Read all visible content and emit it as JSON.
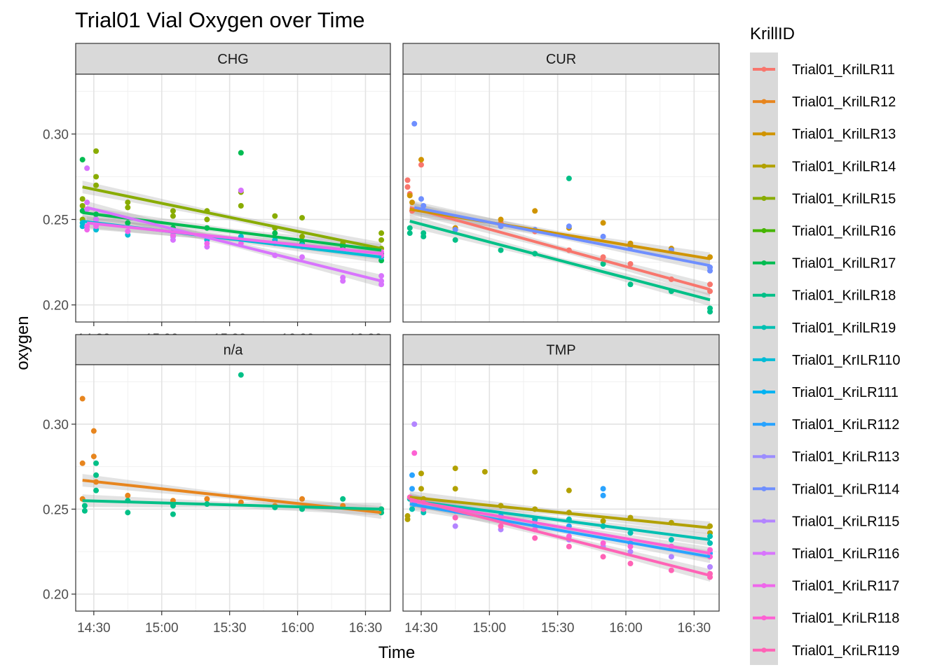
{
  "chart_data": {
    "type": "scatter",
    "title": "Trial01 Vial Oxygen over Time",
    "xlabel": "Time",
    "ylabel": "oxygen",
    "xlim_minutes": [
      862,
      1001
    ],
    "ylim": [
      0.19,
      0.335
    ],
    "x_ticks": [
      {
        "value": 870,
        "label": "14:30"
      },
      {
        "value": 900,
        "label": "15:00"
      },
      {
        "value": 930,
        "label": "15:30"
      },
      {
        "value": 960,
        "label": "16:00"
      },
      {
        "value": 990,
        "label": "16:30"
      }
    ],
    "y_ticks": [
      {
        "value": 0.2,
        "label": "0.20"
      },
      {
        "value": 0.25,
        "label": "0.25"
      },
      {
        "value": 0.3,
        "label": "0.30"
      }
    ],
    "legend": {
      "title": "KrillID",
      "position": "right"
    },
    "series": [
      {
        "name": "Trial01_KrilLR11",
        "color": "#F8766D"
      },
      {
        "name": "Trial01_KrilLR12",
        "color": "#E7851E"
      },
      {
        "name": "Trial01_KrilLR13",
        "color": "#D09400"
      },
      {
        "name": "Trial01_KrilLR14",
        "color": "#B2A100"
      },
      {
        "name": "Trial01_KrilLR15",
        "color": "#89AC00"
      },
      {
        "name": "Trial01_KrilLR16",
        "color": "#45B500"
      },
      {
        "name": "Trial01_KrilLR17",
        "color": "#00BC51"
      },
      {
        "name": "Trial01_KrilLR18",
        "color": "#00C087"
      },
      {
        "name": "Trial01_KrilLR19",
        "color": "#00C0B2"
      },
      {
        "name": "Trial01_KrILR110",
        "color": "#00BCD6"
      },
      {
        "name": "Trial01_KriLR111",
        "color": "#00B3F2"
      },
      {
        "name": "Trial01_KriLR112",
        "color": "#29A3FF"
      },
      {
        "name": "Trial01_KriLR113",
        "color": "#9C8DFF"
      },
      {
        "name": "Trial01_KriLR114",
        "color": "#6F8FFF"
      },
      {
        "name": "Trial01_KriLR115",
        "color": "#B385FF"
      },
      {
        "name": "Trial01_KriLR116",
        "color": "#D874FD"
      },
      {
        "name": "Trial01_KriLR117",
        "color": "#EF67EB"
      },
      {
        "name": "Trial01_KriLR118",
        "color": "#FD61D3"
      },
      {
        "name": "Trial01_KriLR119",
        "color": "#FF63B6"
      }
    ],
    "panels": [
      {
        "name": "CHG",
        "fits": [
          {
            "series": 4,
            "x": [
              865,
              997
            ],
            "y": [
              0.269,
              0.233
            ]
          },
          {
            "series": 6,
            "x": [
              865,
              997
            ],
            "y": [
              0.254,
              0.232
            ]
          },
          {
            "series": 9,
            "x": [
              865,
              997
            ],
            "y": [
              0.249,
              0.228
            ]
          },
          {
            "series": 15,
            "x": [
              867,
              997
            ],
            "y": [
              0.257,
              0.214
            ]
          },
          {
            "series": 16,
            "x": [
              867,
              997
            ],
            "y": [
              0.248,
              0.23
            ]
          }
        ],
        "points": [
          {
            "series": 4,
            "x": [
              865,
              865,
              865,
              871,
              871,
              871,
              885,
              885,
              905,
              905,
              920,
              920,
              935,
              935,
              950,
              950,
              962,
              962,
              980,
              997,
              997,
              997
            ],
            "y": [
              0.262,
              0.258,
              0.25,
              0.29,
              0.275,
              0.27,
              0.26,
              0.257,
              0.255,
              0.252,
              0.255,
              0.25,
              0.266,
              0.258,
              0.252,
              0.245,
              0.251,
              0.24,
              0.236,
              0.242,
              0.238,
              0.233
            ]
          },
          {
            "series": 6,
            "x": [
              865,
              865,
              871,
              871,
              885,
              905,
              920,
              935,
              950,
              962,
              980,
              997,
              997
            ],
            "y": [
              0.285,
              0.255,
              0.253,
              0.25,
              0.248,
              0.245,
              0.245,
              0.289,
              0.242,
              0.236,
              0.234,
              0.23,
              0.226
            ]
          },
          {
            "series": 9,
            "x": [
              865,
              865,
              871,
              871,
              885,
              905,
              920,
              935,
              950,
              962,
              980,
              997
            ],
            "y": [
              0.248,
              0.246,
              0.247,
              0.244,
              0.241,
              0.24,
              0.238,
              0.24,
              0.238,
              0.235,
              0.232,
              0.228
            ]
          },
          {
            "series": 15,
            "x": [
              867,
              867,
              867,
              871,
              871,
              885,
              905,
              905,
              920,
              935,
              950,
              962,
              980,
              980,
              997,
              997,
              997
            ],
            "y": [
              0.28,
              0.26,
              0.256,
              0.25,
              0.248,
              0.243,
              0.24,
              0.238,
              0.234,
              0.267,
              0.229,
              0.228,
              0.216,
              0.214,
              0.217,
              0.214,
              0.212
            ]
          },
          {
            "series": 16,
            "x": [
              867,
              867,
              871,
              885,
              905,
              920,
              935,
              950,
              962,
              980,
              997,
              997
            ],
            "y": [
              0.246,
              0.244,
              0.246,
              0.243,
              0.241,
              0.236,
              0.236,
              0.236,
              0.234,
              0.232,
              0.231,
              0.229
            ]
          }
        ]
      },
      {
        "name": "CUR",
        "fits": [
          {
            "series": 0,
            "x": [
              865,
              997
            ],
            "y": [
              0.257,
              0.209
            ]
          },
          {
            "series": 2,
            "x": [
              865,
              997
            ],
            "y": [
              0.256,
              0.227
            ]
          },
          {
            "series": 7,
            "x": [
              865,
              997
            ],
            "y": [
              0.249,
              0.203
            ]
          },
          {
            "series": 13,
            "x": [
              867,
              997
            ],
            "y": [
              0.257,
              0.223
            ]
          }
        ],
        "points": [
          {
            "series": 0,
            "x": [
              864,
              864,
              865,
              866,
              870,
              885,
              905,
              920,
              935,
              950,
              962,
              980,
              997,
              997
            ],
            "y": [
              0.273,
              0.269,
              0.265,
              0.255,
              0.282,
              0.245,
              0.248,
              0.243,
              0.232,
              0.228,
              0.224,
              0.215,
              0.212,
              0.208
            ]
          },
          {
            "series": 2,
            "x": [
              865,
              866,
              870,
              885,
              905,
              920,
              935,
              950,
              962,
              980,
              997
            ],
            "y": [
              0.264,
              0.26,
              0.285,
              0.245,
              0.25,
              0.255,
              0.245,
              0.248,
              0.236,
              0.233,
              0.228
            ]
          },
          {
            "series": 7,
            "x": [
              865,
              865,
              871,
              871,
              885,
              905,
              920,
              935,
              950,
              962,
              980,
              997,
              997
            ],
            "y": [
              0.245,
              0.242,
              0.242,
              0.24,
              0.238,
              0.232,
              0.23,
              0.274,
              0.224,
              0.212,
              0.208,
              0.198,
              0.196
            ]
          },
          {
            "series": 13,
            "x": [
              867,
              870,
              871,
              885,
              905,
              920,
              935,
              950,
              962,
              980,
              997,
              997
            ],
            "y": [
              0.306,
              0.262,
              0.258,
              0.244,
              0.246,
              0.244,
              0.246,
              0.24,
              0.234,
              0.232,
              0.222,
              0.22
            ]
          }
        ]
      },
      {
        "name": "n/a",
        "fits": [
          {
            "series": 1,
            "x": [
              865,
              997
            ],
            "y": [
              0.267,
              0.248
            ]
          },
          {
            "series": 7,
            "x": [
              865,
              997
            ],
            "y": [
              0.255,
              0.25
            ]
          }
        ],
        "points": [
          {
            "series": 1,
            "x": [
              865,
              865,
              865,
              870,
              870,
              871,
              885,
              905,
              920,
              935,
              950,
              962,
              980,
              997
            ],
            "y": [
              0.315,
              0.277,
              0.256,
              0.296,
              0.281,
              0.266,
              0.258,
              0.255,
              0.256,
              0.254,
              0.252,
              0.256,
              0.252,
              0.25
            ]
          },
          {
            "series": 7,
            "x": [
              866,
              866,
              871,
              871,
              871,
              885,
              885,
              905,
              905,
              920,
              935,
              950,
              962,
              980,
              997,
              997
            ],
            "y": [
              0.252,
              0.249,
              0.277,
              0.27,
              0.261,
              0.255,
              0.248,
              0.252,
              0.247,
              0.253,
              0.329,
              0.251,
              0.25,
              0.256,
              0.25,
              0.248
            ]
          }
        ]
      },
      {
        "name": "TMP",
        "fits": [
          {
            "series": 3,
            "x": [
              865,
              997
            ],
            "y": [
              0.257,
              0.239
            ]
          },
          {
            "series": 8,
            "x": [
              865,
              997
            ],
            "y": [
              0.255,
              0.232
            ]
          },
          {
            "series": 11,
            "x": [
              865,
              997
            ],
            "y": [
              0.253,
              0.222
            ]
          },
          {
            "series": 17,
            "x": [
              865,
              997
            ],
            "y": [
              0.255,
              0.224
            ]
          },
          {
            "series": 18,
            "x": [
              865,
              997
            ],
            "y": [
              0.256,
              0.211
            ]
          }
        ],
        "points": [
          {
            "series": 3,
            "x": [
              864,
              864,
              870,
              870,
              871,
              885,
              885,
              898,
              905,
              920,
              920,
              935,
              935,
              950,
              962,
              980,
              997,
              997
            ],
            "y": [
              0.246,
              0.244,
              0.271,
              0.262,
              0.256,
              0.274,
              0.262,
              0.272,
              0.252,
              0.272,
              0.25,
              0.261,
              0.248,
              0.243,
              0.245,
              0.242,
              0.24,
              0.236
            ]
          },
          {
            "series": 8,
            "x": [
              865,
              866,
              871,
              885,
              905,
              920,
              935,
              950,
              962,
              980,
              997,
              997
            ],
            "y": [
              0.256,
              0.25,
              0.248,
              0.25,
              0.246,
              0.244,
              0.244,
              0.24,
              0.236,
              0.232,
              0.234,
              0.23
            ]
          },
          {
            "series": 11,
            "x": [
              866,
              866,
              867,
              871,
              885,
              905,
              920,
              935,
              950,
              950,
              962,
              980,
              997
            ],
            "y": [
              0.27,
              0.262,
              0.253,
              0.252,
              0.249,
              0.246,
              0.242,
              0.24,
              0.262,
              0.258,
              0.23,
              0.228,
              0.224
            ]
          },
          {
            "series": 14,
            "x": [
              867,
              871,
              885,
              905,
              920,
              935,
              950,
              962,
              980,
              997
            ],
            "y": [
              0.3,
              0.252,
              0.24,
              0.238,
              0.238,
              0.232,
              0.228,
              0.225,
              0.222,
              0.216
            ]
          },
          {
            "series": 17,
            "x": [
              867,
              871,
              885,
              905,
              920,
              935,
              950,
              962,
              980,
              997,
              997
            ],
            "y": [
              0.283,
              0.254,
              0.245,
              0.244,
              0.238,
              0.234,
              0.23,
              0.228,
              0.228,
              0.226,
              0.222
            ]
          },
          {
            "series": 18,
            "x": [
              865,
              871,
              885,
              905,
              920,
              935,
              950,
              962,
              980,
              997,
              997
            ],
            "y": [
              0.257,
              0.25,
              0.245,
              0.24,
              0.233,
              0.228,
              0.222,
              0.218,
              0.214,
              0.212,
              0.21
            ]
          }
        ]
      }
    ]
  }
}
